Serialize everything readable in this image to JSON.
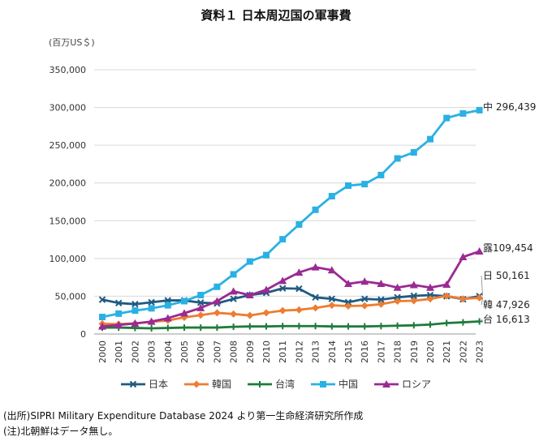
{
  "title": "資料１ 日本周辺国の軍事費",
  "unit_label": "(百万US＄)",
  "notes": {
    "source": "(出所)SIPRI Military Expenditure Database 2024 より第一生命経済研究所作成",
    "note": "(注)北朝鮮はデータ無し。"
  },
  "chart_data": {
    "type": "line",
    "title": "資料１ 日本周辺国の軍事費",
    "ylabel": "(百万US＄)",
    "xlabel": "",
    "ylim": [
      0,
      350000
    ],
    "yticks": [
      0,
      50000,
      100000,
      150000,
      200000,
      250000,
      300000,
      350000
    ],
    "ytick_labels": [
      "0",
      "50,000",
      "100,000",
      "150,000",
      "200,000",
      "250,000",
      "300,000",
      "350,000"
    ],
    "grid": true,
    "legend_position": "bottom",
    "x": [
      "2000",
      "2001",
      "2002",
      "2003",
      "2004",
      "2005",
      "2006",
      "2007",
      "2008",
      "2009",
      "2010",
      "2011",
      "2012",
      "2013",
      "2014",
      "2015",
      "2016",
      "2017",
      "2018",
      "2019",
      "2020",
      "2021",
      "2022",
      "2023"
    ],
    "series": [
      {
        "name": "日本",
        "color": "#1f5a82",
        "marker": "x",
        "values": [
          45500,
          41000,
          39500,
          42000,
          44500,
          44500,
          41500,
          40500,
          46500,
          51500,
          54500,
          60500,
          60000,
          48500,
          46500,
          42000,
          46500,
          45500,
          48500,
          50500,
          51500,
          50000,
          46000,
          50161
        ],
        "end_label": "日 50,161"
      },
      {
        "name": "韓国",
        "color": "#ed7d31",
        "marker": "diamond",
        "values": [
          13500,
          13000,
          14000,
          16000,
          18000,
          22000,
          25000,
          28000,
          26500,
          24500,
          28000,
          31000,
          32000,
          34500,
          38000,
          37000,
          37500,
          39500,
          43500,
          44000,
          46500,
          50500,
          46500,
          47926
        ],
        "end_label": "韓 47,926"
      },
      {
        "name": "台湾",
        "color": "#1e7b3a",
        "marker": "plus",
        "values": [
          8500,
          8500,
          8000,
          7500,
          8000,
          8500,
          8500,
          8500,
          9500,
          10000,
          10000,
          10500,
          10500,
          10500,
          10000,
          10000,
          10000,
          10500,
          11000,
          11500,
          12500,
          14500,
          15500,
          16613
        ],
        "end_label": "台 16,613"
      },
      {
        "name": "中国",
        "color": "#2ab1e3",
        "marker": "square",
        "values": [
          22500,
          27000,
          31000,
          34000,
          38000,
          43500,
          51500,
          62500,
          79000,
          96000,
          104500,
          125500,
          145000,
          164500,
          182500,
          196500,
          198500,
          210500,
          232500,
          240500,
          258000,
          286000,
          292000,
          296439
        ],
        "end_label": "中 296,439"
      },
      {
        "name": "ロシア",
        "color": "#9b2a93",
        "marker": "triangle",
        "values": [
          10000,
          12000,
          14000,
          16500,
          21000,
          27500,
          34500,
          43500,
          56500,
          51500,
          58500,
          70500,
          81500,
          88500,
          84500,
          66500,
          69500,
          66500,
          61500,
          65000,
          61500,
          65500,
          102000,
          109454
        ],
        "end_label": "露109,454"
      }
    ]
  }
}
